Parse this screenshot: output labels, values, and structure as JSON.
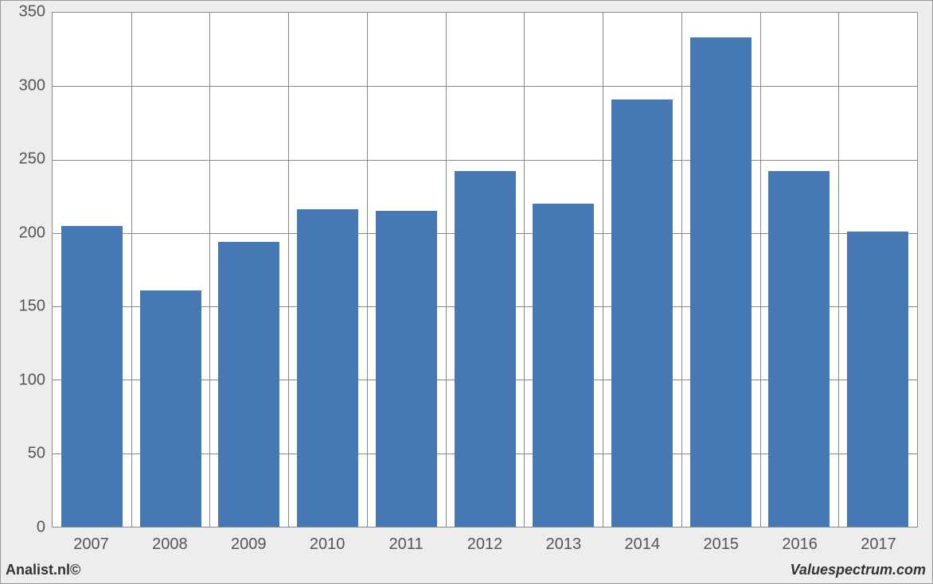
{
  "chart": {
    "type": "bar",
    "categories": [
      "2007",
      "2008",
      "2009",
      "2010",
      "2011",
      "2012",
      "2013",
      "2014",
      "2015",
      "2016",
      "2017"
    ],
    "values": [
      205,
      161,
      194,
      216,
      215,
      242,
      220,
      291,
      333,
      242,
      201
    ],
    "bar_color": "#4578b4",
    "ylim": [
      0,
      350
    ],
    "ytick_step": 50,
    "yticks": [
      0,
      50,
      100,
      150,
      200,
      250,
      300,
      350
    ],
    "background_color": "#ffffff",
    "outer_background": "#ededed",
    "grid_color": "#8a8a8a",
    "axis_label_color": "#555555",
    "axis_fontsize": 20,
    "bar_width_ratio": 0.78
  },
  "footer": {
    "left": "Analist.nl©",
    "right": "Valuespectrum.com"
  }
}
